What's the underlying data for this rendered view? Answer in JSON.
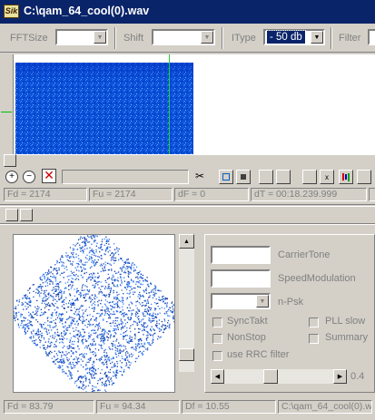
{
  "window": {
    "title": "C:\\qam_64_cool(0).wav",
    "icon": "app-logo"
  },
  "toolbar": {
    "fftsize_label": "FFTSize",
    "shift_label": "Shift",
    "itype_label": "IType",
    "itype_value": "- 50 db",
    "filter_label": "Filter"
  },
  "status_top": {
    "fd": "Fd = 2174",
    "fu": "Fu = 2174",
    "df": "dF = 0",
    "dt": "dT = 00:18.239.999"
  },
  "panel": {
    "carrier_label": "CarrierTone",
    "speed_label": "SpeedModulation",
    "npsk_label": "n-Psk",
    "synctakt_label": "SyncTakt",
    "pllslow_label": "PLL slow",
    "nonstop_label": "NonStop",
    "summary_label": "Summary",
    "rrc_label": "use RRC filter",
    "slider_value": "0.4"
  },
  "status_bottom": {
    "fd": "Fd = 83.79",
    "fu": "Fu = 94.34",
    "df": "Df = 10.55",
    "file": "C:\\qam_64_cool(0).wav"
  },
  "colors": {
    "title_bar": "#0a246a",
    "spectrogram": "#1060e0",
    "constellation": "#1e5ad0"
  }
}
